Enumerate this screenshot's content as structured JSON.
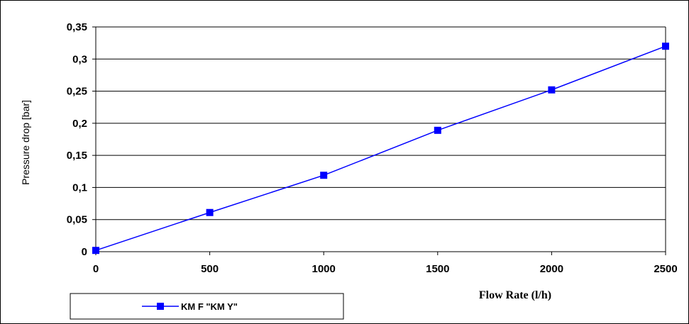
{
  "chart_data": {
    "type": "line",
    "title": "",
    "xlabel": "Flow Rate  (l/h)",
    "ylabel": "Pressure drop [bar]",
    "xlim": [
      0,
      2500
    ],
    "ylim": [
      0,
      0.35
    ],
    "x_ticks": [
      0,
      500,
      1000,
      1500,
      2000,
      2500
    ],
    "x_tick_labels": [
      "0",
      "500",
      "1000",
      "1500",
      "2000",
      "2500"
    ],
    "y_ticks": [
      0,
      0.05,
      0.1,
      0.15,
      0.2,
      0.25,
      0.3,
      0.35
    ],
    "y_tick_labels": [
      "0",
      "0,05",
      "0,1",
      "0,15",
      "0,2",
      "0,25",
      "0,3",
      "0,35"
    ],
    "grid": "horizontal",
    "legend_position": "bottom-left",
    "series": [
      {
        "name": "KM F  \"KM Y\"",
        "color": "#0000ff",
        "marker": "square",
        "x": [
          0,
          500,
          1000,
          1500,
          2000,
          2500
        ],
        "y": [
          0.002,
          0.061,
          0.119,
          0.189,
          0.252,
          0.32
        ]
      }
    ]
  }
}
